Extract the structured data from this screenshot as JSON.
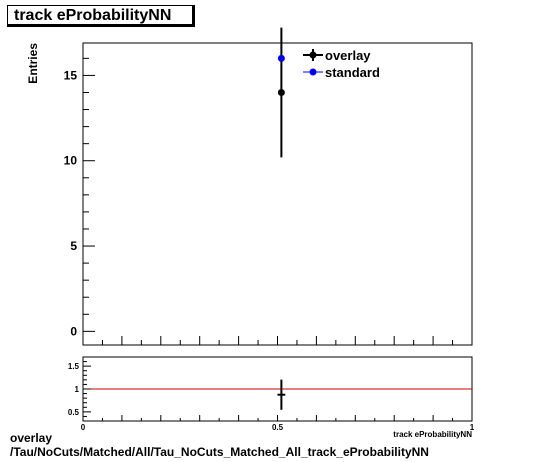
{
  "chart_data": [
    {
      "type": "scatter",
      "title": "track eProbabilityNN",
      "ylabel": "Entries",
      "xlabel": "track eProbabilityNN",
      "xlim": [
        0,
        1
      ],
      "ylim": [
        -0.8,
        16.9
      ],
      "y_ticks": [
        0,
        5,
        10,
        15
      ],
      "legend_position": "top-right",
      "series": [
        {
          "name": "overlay",
          "color": "#000000",
          "points": [
            {
              "x": 0.51,
              "y": 14,
              "y_err_low": 3.8,
              "y_err_high": 3.8
            }
          ]
        },
        {
          "name": "standard",
          "color": "#0000ff",
          "points": [
            {
              "x": 0.51,
              "y": 16,
              "y_err_low": 0,
              "y_err_high": 0
            }
          ]
        }
      ]
    },
    {
      "type": "scatter",
      "title": "",
      "xlim": [
        0,
        1
      ],
      "ylim": [
        0.3,
        1.7
      ],
      "x_ticks": [
        0,
        0.5,
        1
      ],
      "x_tick_labels": [
        "0",
        "0.5",
        "1"
      ],
      "y_ticks": [
        0.5,
        1,
        1.5
      ],
      "y_tick_labels": [
        "0.5",
        "1",
        "1.5"
      ],
      "reference_line": {
        "y": 1,
        "color": "#cc0000"
      },
      "points": [
        {
          "x": 0.51,
          "y": 0.875,
          "y_err_low": 0.33,
          "y_err_high": 0.33,
          "x_err": 0.01
        }
      ]
    }
  ],
  "footer": {
    "line1": "overlay",
    "line2": "/Tau/NoCuts/Matched/All/Tau_NoCuts_Matched_All_track_eProbabilityNN"
  }
}
